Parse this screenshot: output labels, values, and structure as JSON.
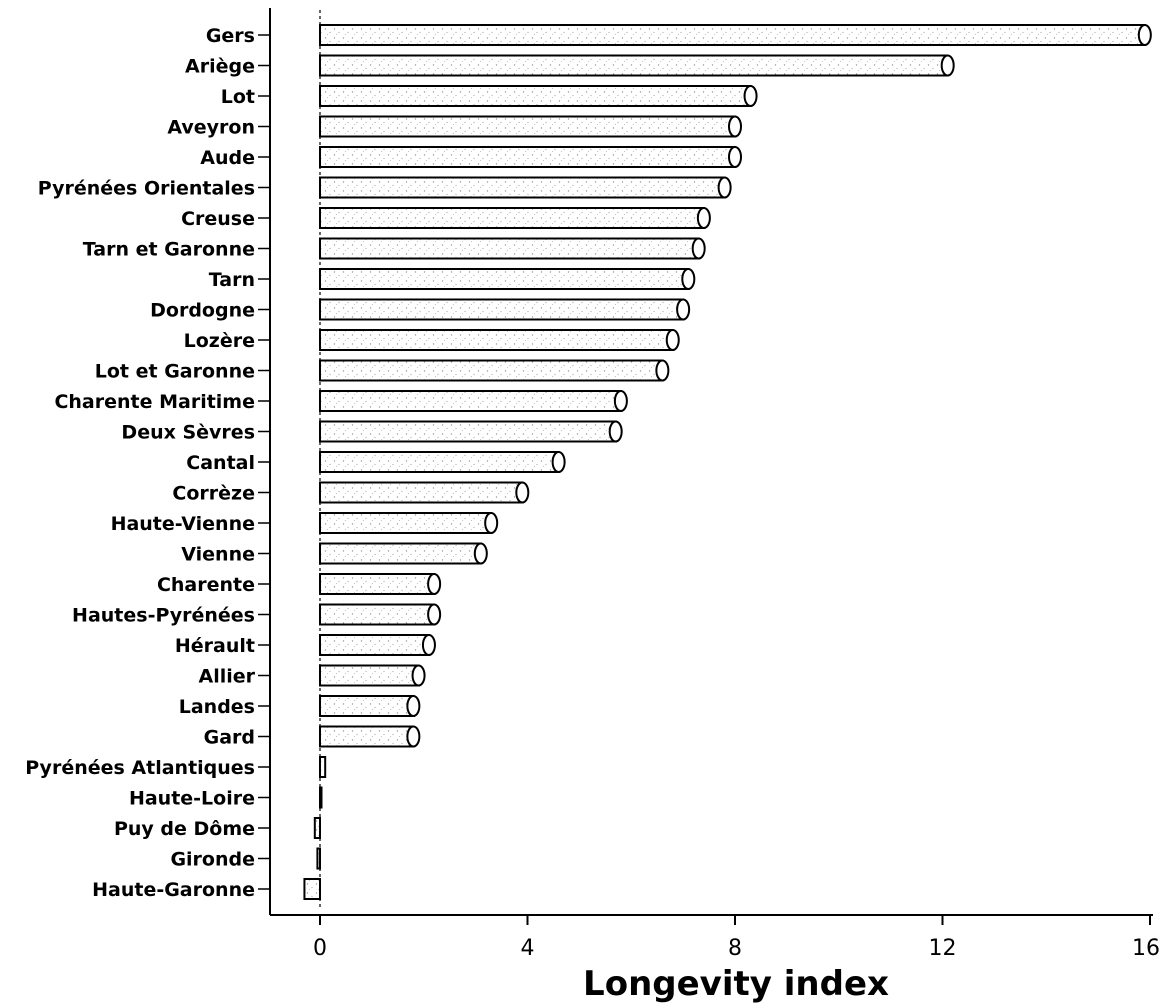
{
  "chart_data": {
    "type": "bar",
    "orientation": "horizontal",
    "title": "",
    "xlabel": "Longevity index",
    "ylabel": "",
    "xlim": [
      -1,
      16
    ],
    "xticks": [
      0,
      4,
      8,
      12,
      16
    ],
    "grid": false,
    "categories": [
      "Gers",
      "Ariège",
      "Lot",
      "Aveyron",
      "Aude",
      "Pyrénées Orientales",
      "Creuse",
      "Tarn et Garonne",
      "Tarn",
      "Dordogne",
      "Lozère",
      "Lot et Garonne",
      "Charente Maritime",
      "Deux Sèvres",
      "Cantal",
      "Corrèze",
      "Haute-Vienne",
      "Vienne",
      "Charente",
      "Hautes-Pyrénées",
      "Hérault",
      "Allier",
      "Landes",
      "Gard",
      "Pyrénées Atlantiques",
      "Haute-Loire",
      "Puy de Dôme",
      "Gironde",
      "Haute-Garonne"
    ],
    "values": [
      15.9,
      12.1,
      8.3,
      8.0,
      8.0,
      7.8,
      7.4,
      7.3,
      7.1,
      7.0,
      6.8,
      6.6,
      5.8,
      5.7,
      4.6,
      3.9,
      3.3,
      3.1,
      2.2,
      2.2,
      2.1,
      1.9,
      1.8,
      1.8,
      0.1,
      0.0,
      -0.1,
      -0.05,
      -0.3
    ]
  }
}
